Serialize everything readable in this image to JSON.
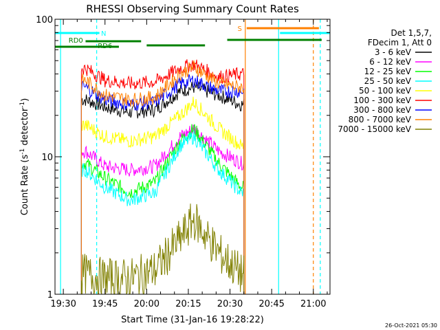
{
  "chart_data": {
    "type": "line",
    "title": "RHESSI Observing Summary Count Rates",
    "xlabel": "Start Time (31-Jan-16 19:28:22)",
    "ylabel_main": "Count Rate (s",
    "ylabel_sup1": "-1",
    "ylabel_mid": " detector",
    "ylabel_sup2": "-1",
    "ylabel_end": ")",
    "y_scale": "log",
    "ylim": [
      1,
      100
    ],
    "xlim_minutes": [
      -3,
      96
    ],
    "y_ticks": [
      {
        "value": 1,
        "label": "1"
      },
      {
        "value": 10,
        "label": "10"
      },
      {
        "value": 100,
        "label": "100"
      }
    ],
    "x_ticks": [
      {
        "minute": 0,
        "label": "19:30"
      },
      {
        "minute": 15,
        "label": "19:45"
      },
      {
        "minute": 30,
        "label": "20:00"
      },
      {
        "minute": 45,
        "label": "20:15"
      },
      {
        "minute": 60,
        "label": "20:30"
      },
      {
        "minute": 75,
        "label": "20:45"
      },
      {
        "minute": 90,
        "label": "21:00"
      }
    ],
    "legend_header": [
      "Det 1,5,7,",
      "FDecim 1, Att 0"
    ],
    "series": [
      {
        "name": "3 - 6 keV",
        "color": "#000000",
        "level": [
          26,
          23,
          21,
          22,
          30,
          32,
          28,
          24
        ]
      },
      {
        "name": "6 - 12 keV",
        "color": "#ff00ff",
        "level": [
          11,
          8.5,
          8,
          8.5,
          14,
          16,
          11,
          9
        ]
      },
      {
        "name": "12 - 25 keV",
        "color": "#00ff00",
        "level": [
          9,
          7,
          5.5,
          6.5,
          13,
          16,
          9,
          6
        ]
      },
      {
        "name": "25 - 50 keV",
        "color": "#00ffff",
        "level": [
          8,
          6,
          4.8,
          5.5,
          12,
          14,
          8,
          5.5
        ]
      },
      {
        "name": "50 - 100 keV",
        "color": "#ffff00",
        "level": [
          17,
          14,
          13,
          14,
          20,
          25,
          16,
          12
        ]
      },
      {
        "name": "100 - 300 keV",
        "color": "#ff0000",
        "level": [
          44,
          36,
          34,
          35,
          44,
          47,
          38,
          40
        ]
      },
      {
        "name": "300 - 800 keV",
        "color": "#0000ff",
        "level": [
          32,
          26,
          24,
          25,
          34,
          36,
          30,
          30
        ]
      },
      {
        "name": "800 - 7000 keV",
        "color": "#ff8000",
        "level": [
          36,
          28,
          26,
          27,
          40,
          45,
          34,
          32
        ]
      },
      {
        "name": "7000 - 15000 keV",
        "color": "#808000",
        "level": [
          1.4,
          1.3,
          1.3,
          1.5,
          2.5,
          3.5,
          2.0,
          1.4
        ]
      }
    ],
    "series_minutes": [
      8,
      15,
      24,
      33,
      42,
      47,
      56,
      64
    ],
    "flags": [
      {
        "label": "N",
        "color": "#00ffff",
        "minute": 13
      },
      {
        "label": "RD0",
        "color": "#008000",
        "minute": 4
      },
      {
        "label": "RD6",
        "color": "#008000",
        "minute": 14
      },
      {
        "label": "S",
        "color": "#ff8000",
        "minute": 64
      }
    ],
    "vertical_lines": [
      {
        "color": "#00ffff",
        "minute": -1,
        "style": "solid"
      },
      {
        "color": "#00ffff",
        "minute": 12,
        "style": "dashed"
      },
      {
        "color": "#00ffff",
        "minute": 77.5,
        "style": "solid"
      },
      {
        "color": "#00ffff",
        "minute": 92.5,
        "style": "dashed"
      },
      {
        "color": "#ff8000",
        "minute": 65.5,
        "style": "solid"
      },
      {
        "color": "#ff8000",
        "minute": 90,
        "style": "dashed"
      }
    ],
    "footer_date": "26-Oct-2021 05:30"
  }
}
